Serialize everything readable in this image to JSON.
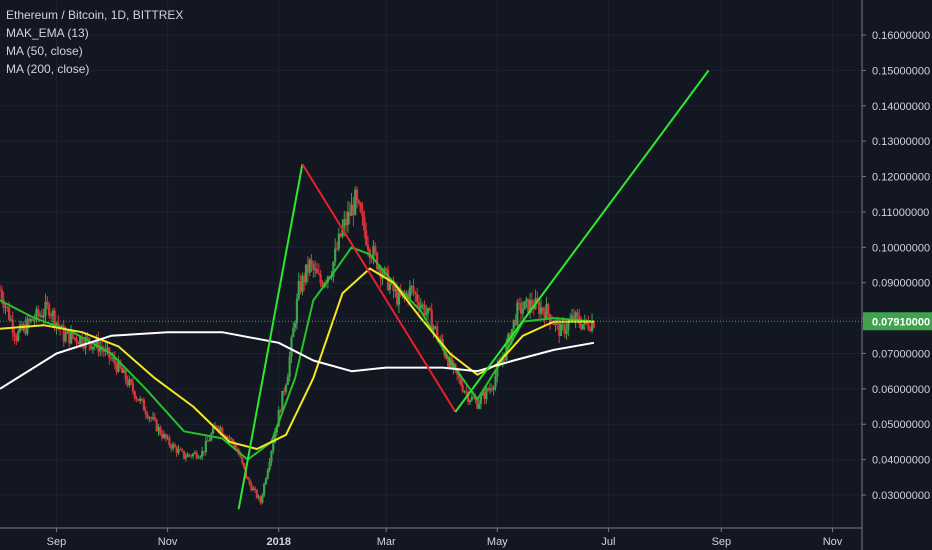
{
  "header": {
    "symbol_line": "Ethereum / Bitcoin, 1D, BITTREX",
    "indicators": [
      "MAK_EMA (13)",
      "MA (50, close)",
      "MA (200, close)"
    ]
  },
  "chart_data": {
    "type": "candlestick",
    "title": "Ethereum / Bitcoin, 1D, BITTREX",
    "ylim": [
      0.02,
      0.165
    ],
    "y_ticks": [
      0.03,
      0.04,
      0.05,
      0.06,
      0.07,
      0.08,
      0.09,
      0.1,
      0.11,
      0.12,
      0.13,
      0.14,
      0.15,
      0.16
    ],
    "y_tick_labels": [
      "0.03000000",
      "0.04000000",
      "0.05000000",
      "0.06000000",
      "0.07000000",
      "0.08000000",
      "0.09000000",
      "0.10000000",
      "0.11000000",
      "0.12000000",
      "0.13000000",
      "0.14000000",
      "0.15000000",
      "0.16000000"
    ],
    "x_range": [
      "2017-08-01",
      "2018-11-15"
    ],
    "x_ticks": [
      "2017-09-01",
      "2017-11-01",
      "2018-01-01",
      "2018-03-01",
      "2018-05-01",
      "2018-07-01",
      "2018-09-01",
      "2018-11-01"
    ],
    "x_tick_labels": [
      "Sep",
      "Nov",
      "2018",
      "Mar",
      "May",
      "Jul",
      "Sep",
      "Nov"
    ],
    "last_price": 0.0791,
    "last_price_label": "0.07910000",
    "price_series": {
      "dates": [
        "2017-08-01",
        "2017-08-10",
        "2017-08-20",
        "2017-08-28",
        "2017-09-05",
        "2017-09-15",
        "2017-09-25",
        "2017-10-05",
        "2017-10-15",
        "2017-10-25",
        "2017-11-01",
        "2017-11-10",
        "2017-11-20",
        "2017-11-28",
        "2017-12-05",
        "2017-12-09",
        "2017-12-15",
        "2017-12-22",
        "2017-12-30",
        "2018-01-06",
        "2018-01-12",
        "2018-01-18",
        "2018-01-24",
        "2018-01-30",
        "2018-02-05",
        "2018-02-12",
        "2018-02-20",
        "2018-02-28",
        "2018-03-08",
        "2018-03-15",
        "2018-03-25",
        "2018-04-05",
        "2018-04-15",
        "2018-04-20",
        "2018-04-28",
        "2018-05-05",
        "2018-05-12",
        "2018-05-20",
        "2018-05-28",
        "2018-06-05",
        "2018-06-12",
        "2018-06-18",
        "2018-06-23"
      ],
      "values": [
        0.088,
        0.075,
        0.08,
        0.083,
        0.075,
        0.074,
        0.072,
        0.066,
        0.058,
        0.05,
        0.045,
        0.041,
        0.042,
        0.05,
        0.046,
        0.043,
        0.034,
        0.028,
        0.048,
        0.065,
        0.088,
        0.095,
        0.09,
        0.094,
        0.105,
        0.113,
        0.1,
        0.092,
        0.085,
        0.088,
        0.08,
        0.067,
        0.058,
        0.056,
        0.061,
        0.07,
        0.082,
        0.084,
        0.082,
        0.076,
        0.08,
        0.078,
        0.0791
      ]
    },
    "series": [
      {
        "name": "MAK_EMA (13)",
        "color": "#26c22b",
        "dates": [
          "2017-08-01",
          "2017-08-20",
          "2017-09-10",
          "2017-10-01",
          "2017-10-20",
          "2017-11-10",
          "2017-12-01",
          "2017-12-15",
          "2017-12-28",
          "2018-01-10",
          "2018-01-20",
          "2018-01-30",
          "2018-02-10",
          "2018-02-20",
          "2018-03-05",
          "2018-03-20",
          "2018-04-05",
          "2018-04-20",
          "2018-05-01",
          "2018-05-15",
          "2018-06-01",
          "2018-06-23"
        ],
        "values": [
          0.085,
          0.08,
          0.076,
          0.07,
          0.06,
          0.048,
          0.046,
          0.04,
          0.045,
          0.063,
          0.085,
          0.092,
          0.1,
          0.098,
          0.09,
          0.082,
          0.068,
          0.057,
          0.066,
          0.079,
          0.08,
          0.079
        ]
      },
      {
        "name": "MA (50, close)",
        "color": "#f5e625",
        "dates": [
          "2017-08-01",
          "2017-08-25",
          "2017-09-15",
          "2017-10-05",
          "2017-10-25",
          "2017-11-15",
          "2017-12-05",
          "2017-12-20",
          "2018-01-05",
          "2018-01-20",
          "2018-02-05",
          "2018-02-20",
          "2018-03-05",
          "2018-03-20",
          "2018-04-05",
          "2018-04-20",
          "2018-05-01",
          "2018-05-15",
          "2018-06-01",
          "2018-06-23"
        ],
        "values": [
          0.077,
          0.078,
          0.076,
          0.072,
          0.063,
          0.055,
          0.045,
          0.043,
          0.047,
          0.063,
          0.087,
          0.094,
          0.09,
          0.08,
          0.07,
          0.064,
          0.067,
          0.075,
          0.079,
          0.079
        ]
      },
      {
        "name": "MA (200, close)",
        "color": "#ffffff",
        "dates": [
          "2017-08-01",
          "2017-09-01",
          "2017-10-01",
          "2017-11-01",
          "2017-12-01",
          "2018-01-01",
          "2018-01-20",
          "2018-02-10",
          "2018-03-01",
          "2018-04-01",
          "2018-04-20",
          "2018-05-10",
          "2018-06-01",
          "2018-06-23"
        ],
        "values": [
          0.06,
          0.07,
          0.075,
          0.076,
          0.076,
          0.073,
          0.068,
          0.065,
          0.066,
          0.066,
          0.065,
          0.068,
          0.071,
          0.073
        ]
      }
    ],
    "trend_lines": [
      {
        "color": "#2ee82e",
        "from": [
          "2017-12-10",
          0.026
        ],
        "to": [
          "2018-01-14",
          0.1235
        ]
      },
      {
        "color": "#e8202a",
        "from": [
          "2018-01-14",
          0.1235
        ],
        "to": [
          "2018-04-08",
          0.0535
        ]
      },
      {
        "color": "#2ee82e",
        "from": [
          "2018-04-08",
          0.0535
        ],
        "to": [
          "2018-08-25",
          0.15
        ]
      }
    ]
  }
}
